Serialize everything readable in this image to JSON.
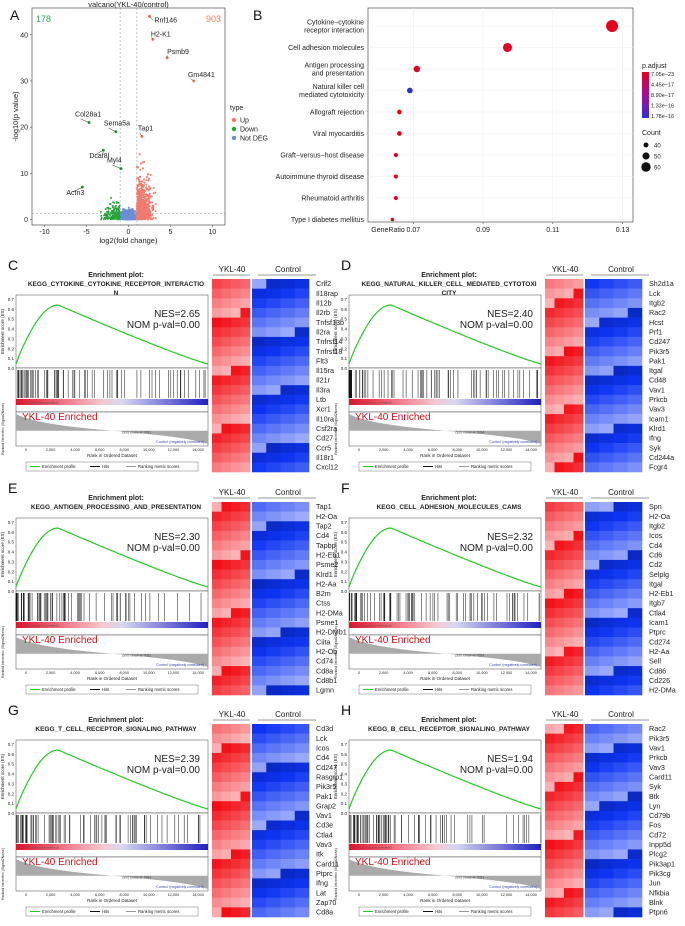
{
  "panel_letters": [
    "A",
    "B",
    "C",
    "D",
    "E",
    "F",
    "G",
    "H"
  ],
  "volcano": {
    "title": "valcano(YKL-40/control)",
    "down_count": "178",
    "up_count": "903",
    "xlabel": "log2(fold change)",
    "ylabel": "-log10(p value)",
    "xticks": [
      "-10",
      "-5",
      "0",
      "5",
      "10"
    ],
    "yticks": [
      "0",
      "10",
      "20",
      "30",
      "40"
    ],
    "gene_labels": [
      "Rnf146",
      "H2-K1",
      "Psmb9",
      "Gm4841",
      "Col28a1",
      "Sema5a",
      "Dcaf8l",
      "Tap1",
      "Myl4",
      "Actn3"
    ],
    "legend_title": "type",
    "legend_items": [
      {
        "label": "Up",
        "color": "#f27a6e"
      },
      {
        "label": "Down",
        "color": "#27a33b"
      },
      {
        "label": "Not DEG",
        "color": "#6b8fd6"
      }
    ]
  },
  "kegg_dotplot": {
    "terms": [
      "Cytokine−cytokine receptor interaction",
      "Cell adhesion molecules",
      "Antigen processing and presentation",
      "Natural killer cell mediated cytotoxicity",
      "Allograft rejection",
      "Viral myocarditis",
      "Graft−versus−host disease",
      "Autoimmune thyroid disease",
      "Rheumatoid arthritis",
      "Type I diabetes mellitus"
    ],
    "term_lines": [
      [
        "Cytokine−cytokine",
        "receptor interaction"
      ],
      [
        "Cell adhesion molecules"
      ],
      [
        "Antigen processing",
        "and presentation"
      ],
      [
        "Natural killer cell",
        "mediated cytotoxicity"
      ],
      [
        "Allograft rejection"
      ],
      [
        "Viral myocarditis"
      ],
      [
        "Graft−versus−host disease"
      ],
      [
        "Autoimmune thyroid disease"
      ],
      [
        "Rheumatoid arthritis"
      ],
      [
        "Type I diabetes mellitus"
      ]
    ],
    "gene_ratio": [
      0.127,
      0.097,
      0.071,
      0.069,
      0.066,
      0.066,
      0.065,
      0.065,
      0.065,
      0.064
    ],
    "count": [
      62,
      45,
      30,
      26,
      20,
      20,
      18,
      17,
      17,
      14
    ],
    "dot_colors": [
      "#e8001c",
      "#e3001f",
      "#e20022",
      "#2e2ee0",
      "#e4001e",
      "#e4001e",
      "#e4001e",
      "#e4001e",
      "#e4001e",
      "#e4001e"
    ],
    "xlabel": "GeneRatio",
    "xticks": [
      "0.07",
      "0.09",
      "0.11",
      "0.13"
    ],
    "xlim": [
      0.057,
      0.133
    ],
    "padj_title": "p.adjust",
    "padj_ticks": [
      "7.05e−23",
      "4.45e−17",
      "8.90e−17",
      "1.33e−16",
      "1.78e−16"
    ],
    "count_title": "Count",
    "count_ticks": [
      "40",
      "50",
      "60"
    ]
  },
  "gsea_common": {
    "enrichment_title": "Enrichment plot:",
    "ylabel_es": "Enrichment score (ES)",
    "ylabel_rank": "Ranked list metric (Signal2Noise)",
    "xlabel": "Rank in Ordered Dataset",
    "es_ticks": [
      "0.0",
      "0.1",
      "0.2",
      "0.3",
      "0.4",
      "0.5",
      "0.6",
      "0.7"
    ],
    "enriched_label": "YKL-40 Enriched",
    "pos_corr": "'YKL-40' (positively correlated)",
    "neg_corr": "'Control' (negatively correlated)",
    "legend_items": [
      "Enrichment profile",
      "Hits",
      "Ranking metric scores"
    ],
    "heatmap_left": "YKL-40",
    "heatmap_right": "Control"
  },
  "gsea_panels": [
    {
      "letter": "C",
      "pathway": "KEGG_CYTOKINE_CYTOKINE_RECEPTOR_INTERACTIO",
      "pathway2": "N",
      "nes": "NES=2.65",
      "nom": "NOM p-val=0.00",
      "zero_cross": "Zero cross at 7051",
      "xticks": [
        "0",
        "2,000",
        "4,000",
        "6,000",
        "8,000",
        "10,000",
        "12,000",
        "14,000"
      ],
      "genes": [
        "Crlf2",
        "Il18rap",
        "Il12b",
        "Il2rb",
        "Tnfsf13b",
        "Il2ra",
        "Tnfrsf14",
        "Tnfrsf18",
        "Flt3",
        "Il15ra",
        "Il21r",
        "Il3ra",
        "Ltb",
        "Xcr1",
        "Il10ra",
        "Csf2ra",
        "Cd27",
        "Ccr5",
        "Il18r1",
        "Cxcl12"
      ]
    },
    {
      "letter": "D",
      "pathway": "KEGG_NATURAL_KILLER_CELL_MEDIATED_CYTOTOXI",
      "pathway2": "CITY",
      "nes": "NES=2.40",
      "nom": "NOM p-val=0.00",
      "zero_cross": "Zero cross at 7054",
      "xticks": [
        "0",
        "2,000",
        "4,000",
        "6,000",
        "8,000",
        "10,000",
        "12,000",
        "14,000"
      ],
      "genes": [
        "Sh2d1a",
        "Lck",
        "Itgb2",
        "Rac2",
        "Hcst",
        "Prf1",
        "Cd247",
        "Pik3r5",
        "Pak1",
        "Itgal",
        "Cd48",
        "Vav1",
        "Prkcb",
        "Vav3",
        "Icam1",
        "Klrd1",
        "Ifng",
        "Syk",
        "Cd244a",
        "Fcgr4"
      ]
    },
    {
      "letter": "E",
      "pathway": "KEGG_ANTIGEN_PROCESSING_AND_PRESENTATION",
      "pathway2": "",
      "nes": "NES=2.30",
      "nom": "NOM p-val=0.00",
      "zero_cross": "Zero cross at 7051",
      "xticks": [
        "0",
        "2,000",
        "4,000",
        "6,000",
        "8,000",
        "10,000",
        "12,000",
        "14,000"
      ],
      "genes": [
        "Tap1",
        "H2-Oa",
        "Tap2",
        "Cd4",
        "Tapbp",
        "H2-Eb1",
        "Psme2",
        "Klrd1",
        "H2-Aa",
        "B2m",
        "Ctss",
        "H2-DMa",
        "Psme1",
        "H2-DMb1",
        "Ciita",
        "H2-Ob",
        "Cd74",
        "Cd8a",
        "Cd8b1",
        "Lgmn"
      ]
    },
    {
      "letter": "F",
      "pathway": "KEGG_CELL_ADHESION_MOLECULES_CAMS",
      "pathway2": "",
      "nes": "NES=2.32",
      "nom": "NOM p-val=0.00",
      "zero_cross": "Zero cross at 7054",
      "xticks": [
        "0",
        "2,000",
        "4,000",
        "6,000",
        "8,000",
        "10,000",
        "12,000",
        "14,000"
      ],
      "genes": [
        "Spn",
        "H2-Oa",
        "Itgb2",
        "Icos",
        "Cd4",
        "Cd6",
        "Cd2",
        "Selplg",
        "Itgal",
        "H2-Eb1",
        "Itgb7",
        "Ctla4",
        "Icam1",
        "Ptprc",
        "Cd274",
        "H2-Aa",
        "Sell",
        "Cd86",
        "Cd226",
        "H2-DMa"
      ]
    },
    {
      "letter": "G",
      "pathway": "KEGG_T_CELL_RECEPTOR_SIGNALING_PATHWAY",
      "pathway2": "",
      "nes": "NES=2.39",
      "nom": "NOM p-val=0.00",
      "zero_cross": "Zero cross at 7051",
      "xticks": [
        "0",
        "2,000",
        "4,000",
        "6,000",
        "8,000",
        "10,000",
        "12,000",
        "14,000"
      ],
      "genes": [
        "Cd3d",
        "Lck",
        "Icos",
        "Cd4",
        "Cd247",
        "Rasgrp1",
        "Pik3r5",
        "Pak1",
        "Grap2",
        "Vav1",
        "Cd3e",
        "Ctla4",
        "Vav3",
        "Itk",
        "Card11",
        "Ptprc",
        "Ifng",
        "Lat",
        "Zap70",
        "Cd8a"
      ]
    },
    {
      "letter": "H",
      "pathway": "KEGG_B_CELL_RECEPTOR_SIGNALING_PATHWAY",
      "pathway2": "",
      "nes": "NES=1.94",
      "nom": "NOM p-val=0.00",
      "zero_cross": "Zero cross at 7051",
      "xticks": [
        "0",
        "2,000",
        "4,000",
        "6,000",
        "8,000",
        "10,000",
        "12,000",
        "14,000"
      ],
      "genes": [
        "Rac2",
        "Pik3r5",
        "Vav1",
        "Prkcb",
        "Vav3",
        "Card11",
        "Syk",
        "Btk",
        "Lyn",
        "Cd79b",
        "Fos",
        "Cd72",
        "Inpp5d",
        "Plcg2",
        "Pik3ap1",
        "Pik3cg",
        "Jun",
        "Nfkbia",
        "Blnk",
        "Ptpn6"
      ]
    }
  ]
}
